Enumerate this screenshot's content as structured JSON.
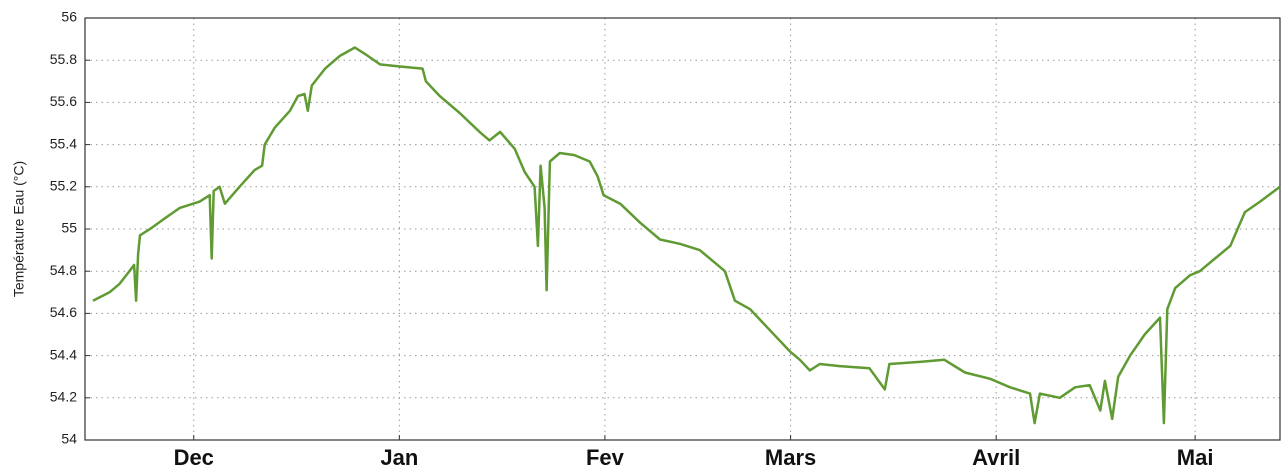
{
  "chart_data": {
    "type": "line",
    "y_label": "Température Eau (°C)",
    "x": [
      -15.2,
      -12.7,
      -11.2,
      -9.7,
      -9,
      -8.7,
      -8.4,
      -8.1,
      -6.6,
      -4.4,
      -2.1,
      0.9,
      2.4,
      2.7,
      3.0,
      3.9,
      4.7,
      6.9,
      9.2,
      10.3,
      10.7,
      12.2,
      14.5,
      15.7,
      16.7,
      17.2,
      17.8,
      19.8,
      22.0,
      24.3,
      25.8,
      28.1,
      31.1,
      34.5,
      35.0,
      37.1,
      40.1,
      43.1,
      44.6,
      46.2,
      48.4,
      49.9,
      51.4,
      51.9,
      52.3,
      52.9,
      53.2,
      53.7,
      55.2,
      57.4,
      59.7,
      60.9,
      61.8,
      64.3,
      67.3,
      70.3,
      73.3,
      76.3,
      78.6,
      80.1,
      81.6,
      83.9,
      86.9,
      89.9,
      91.4,
      92.9,
      94.4,
      97.4,
      101.9,
      104.2,
      104.9,
      109.5,
      113.2,
      116.3,
      120.1,
      123.1,
      126.1,
      126.8,
      127.6,
      130.6,
      132.9,
      135.1,
      136.7,
      137.4,
      138.5,
      139.4,
      141.2,
      143.4,
      145.7,
      146.3,
      146.8,
      148.0,
      150.2,
      151.7,
      154.0,
      156.3,
      158.5,
      160.8,
      163.8
    ],
    "series": [
      {
        "color": "#5f9a32",
        "values": [
          54.66,
          54.7,
          54.74,
          54.8,
          54.83,
          54.66,
          54.88,
          54.97,
          55.0,
          55.05,
          55.1,
          55.13,
          55.16,
          54.86,
          55.18,
          55.2,
          55.12,
          55.2,
          55.28,
          55.3,
          55.4,
          55.48,
          55.56,
          55.63,
          55.64,
          55.56,
          55.68,
          55.76,
          55.82,
          55.86,
          55.83,
          55.78,
          55.77,
          55.76,
          55.7,
          55.63,
          55.55,
          55.46,
          55.42,
          55.46,
          55.38,
          55.27,
          55.2,
          54.92,
          55.3,
          55.1,
          54.71,
          55.32,
          55.36,
          55.35,
          55.32,
          55.25,
          55.16,
          55.12,
          55.03,
          54.95,
          54.93,
          54.9,
          54.84,
          54.8,
          54.66,
          54.62,
          54.52,
          54.42,
          54.38,
          54.33,
          54.36,
          54.35,
          54.34,
          54.24,
          54.36,
          54.37,
          54.38,
          54.32,
          54.29,
          54.25,
          54.22,
          54.08,
          54.22,
          54.2,
          54.25,
          54.26,
          54.14,
          54.28,
          54.1,
          54.3,
          54.4,
          54.5,
          54.58,
          54.08,
          54.62,
          54.72,
          54.78,
          54.8,
          54.86,
          54.92,
          55.08,
          55.13,
          55.2
        ]
      }
    ],
    "xlim": [
      -16.4,
      163.8
    ],
    "xticks": [
      {
        "value": 0,
        "label": "Dec"
      },
      {
        "value": 31,
        "label": "Jan"
      },
      {
        "value": 62,
        "label": "Fev"
      },
      {
        "value": 90,
        "label": "Mars"
      },
      {
        "value": 121,
        "label": "Avril"
      },
      {
        "value": 151,
        "label": "Mai"
      }
    ],
    "ylim": [
      54,
      56
    ],
    "yticks": [
      54,
      54.2,
      54.4,
      54.6,
      54.8,
      55,
      55.2,
      55.4,
      55.6,
      55.8,
      56
    ],
    "grid": true
  }
}
